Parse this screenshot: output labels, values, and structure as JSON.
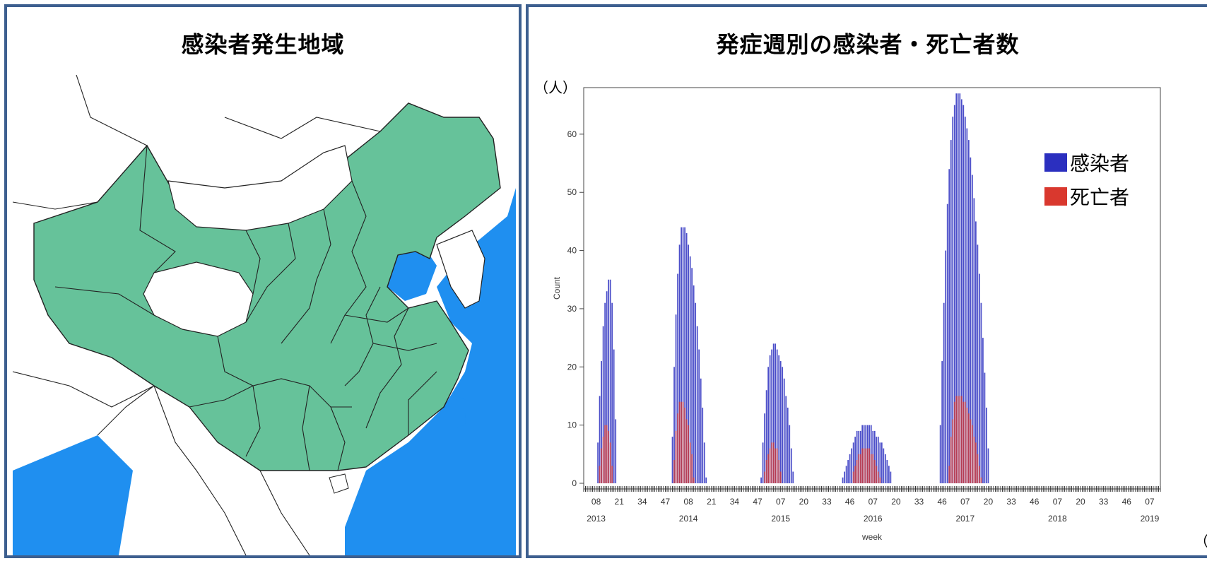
{
  "left_panel": {
    "title": "感染者発生地域"
  },
  "right_panel": {
    "title": "発症週別の感染者・死亡者数",
    "y_unit": "（人）",
    "x_unit": "（週）"
  },
  "colors": {
    "infected": "#2b2fbf",
    "deaths": "#d9382e",
    "region": "#66c29a",
    "sea": "#1f8ff0",
    "border": "#3d5f8f"
  },
  "chart_data": {
    "type": "bar",
    "ylabel": "Count",
    "xlabel": "week",
    "ylim": [
      0,
      68
    ],
    "yticks": [
      0,
      10,
      20,
      30,
      40,
      50,
      60
    ],
    "xtick_labels": [
      "08",
      "21",
      "34",
      "47",
      "08",
      "21",
      "34",
      "47",
      "07",
      "20",
      "33",
      "46",
      "07",
      "20",
      "33",
      "46",
      "07",
      "20",
      "33",
      "46",
      "07",
      "20",
      "33",
      "46",
      "07"
    ],
    "year_labels": [
      "2013",
      "2014",
      "2015",
      "2016",
      "2017",
      "2018",
      "2019"
    ],
    "legend": {
      "position": "top-right",
      "entries": [
        "感染者",
        "死亡者"
      ]
    },
    "series": [
      {
        "name": "感染者",
        "peaks": [
          {
            "start": 2013.14,
            "end": 2013.36,
            "peak_at": 2013.28,
            "peak": 35
          },
          {
            "start": 2013.95,
            "end": 2014.33,
            "peak_at": 2014.07,
            "peak": 44
          },
          {
            "start": 2014.92,
            "end": 2015.28,
            "peak_at": 2015.06,
            "peak": 24
          },
          {
            "start": 2015.8,
            "end": 2016.35,
            "peak_at": 2016.06,
            "peak": 10
          },
          {
            "start": 2016.85,
            "end": 2017.4,
            "peak_at": 2017.05,
            "peak": 67
          }
        ]
      },
      {
        "name": "死亡者",
        "peaks": [
          {
            "start": 2013.16,
            "end": 2013.32,
            "peak_at": 2013.25,
            "peak": 10
          },
          {
            "start": 2013.97,
            "end": 2014.2,
            "peak_at": 2014.05,
            "peak": 14
          },
          {
            "start": 2014.95,
            "end": 2015.15,
            "peak_at": 2015.05,
            "peak": 7
          },
          {
            "start": 2015.9,
            "end": 2016.22,
            "peak_at": 2016.05,
            "peak": 6
          },
          {
            "start": 2016.95,
            "end": 2017.32,
            "peak_at": 2017.05,
            "peak": 15
          }
        ]
      }
    ]
  }
}
